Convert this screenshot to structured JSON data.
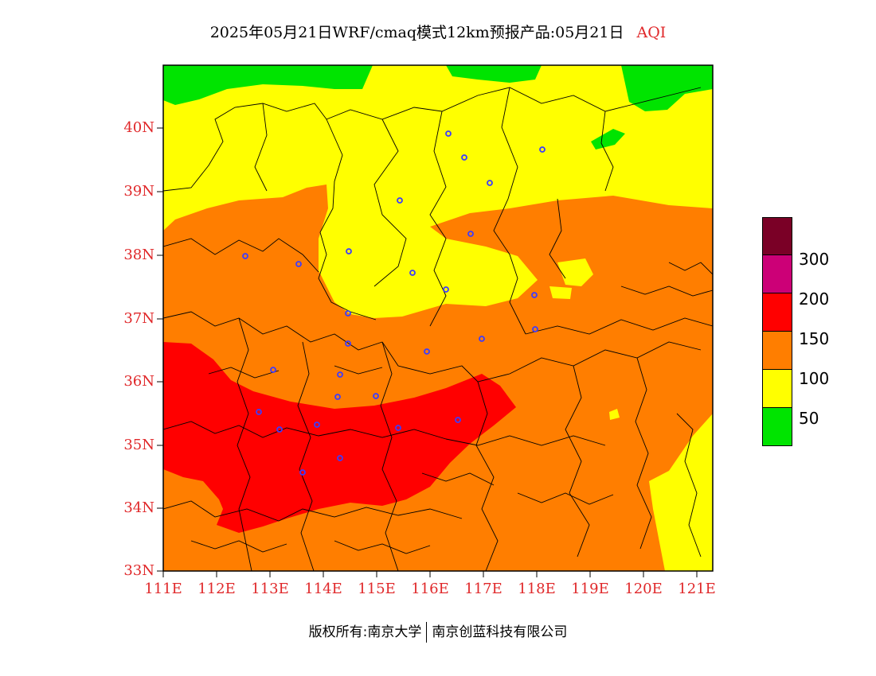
{
  "title": {
    "main": "2025年05月21日WRF/cmaq模式12km预报产品:05月21日",
    "variable": "AQI"
  },
  "axes": {
    "lat_labels": [
      "40N",
      "39N",
      "38N",
      "37N",
      "36N",
      "35N",
      "34N",
      "33N"
    ],
    "lon_labels": [
      "111E",
      "112E",
      "113E",
      "114E",
      "115E",
      "116E",
      "117E",
      "118E",
      "119E",
      "120E",
      "121E"
    ],
    "lat_range": [
      33,
      41
    ],
    "lon_range": [
      111,
      121.4
    ]
  },
  "legend": {
    "colors": [
      "#7a0026",
      "#cc0077",
      "#ff0000",
      "#ff7e00",
      "#ffff00",
      "#00e400"
    ],
    "labels": [
      "300",
      "200",
      "150",
      "100",
      "50"
    ]
  },
  "footer": {
    "left": "版权所有:南京大学",
    "right": "南京创蓝科技有限公司"
  },
  "colors": {
    "label_red": "#e0282a",
    "aqi_good": "#00e400",
    "aqi_moderate": "#ffff00",
    "aqi_usg": "#ff7e00",
    "aqi_unhealthy": "#ff0000",
    "station_marker": "#3c3cff"
  }
}
